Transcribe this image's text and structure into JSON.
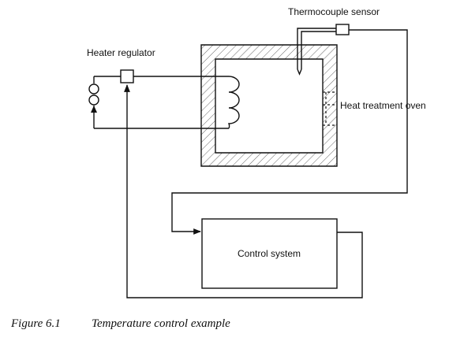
{
  "labels": {
    "thermocouple": "Thermocouple sensor",
    "heater_regulator": "Heater regulator",
    "oven": "Heat treatment oven",
    "control_system": "Control system"
  },
  "caption": {
    "number": "Figure 6.1",
    "text": "Temperature control example"
  }
}
